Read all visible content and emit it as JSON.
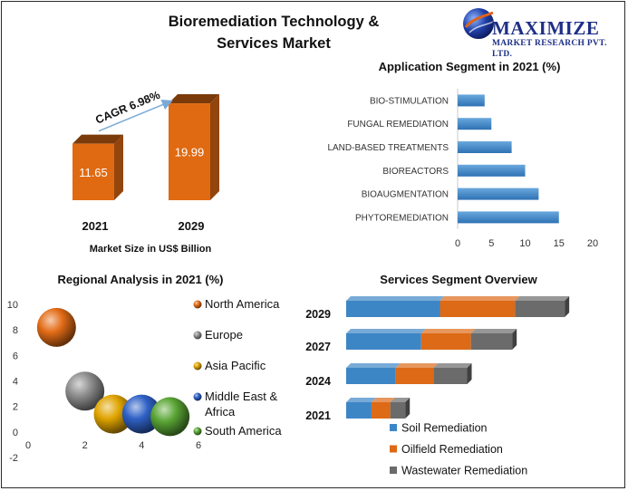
{
  "page": {
    "title_line1": "Bioremediation Technology &",
    "title_line2": "Services Market",
    "logo_name": "MAXIMIZE",
    "logo_sub": "MARKET RESEARCH PVT. LTD."
  },
  "chart_data": [
    {
      "id": "market-size",
      "type": "bar",
      "categories": [
        "2021",
        "2029"
      ],
      "values": [
        11.65,
        19.99
      ],
      "xlabel": "Market Size in US$ Billion",
      "annotation": "CAGR 6.98%",
      "color": "#e06a12"
    },
    {
      "id": "application",
      "type": "bar",
      "orientation": "horizontal",
      "title": "Application Segment in 2021 (%)",
      "categories": [
        "BIO-STIMULATION",
        "FUNGAL REMEDIATION",
        "LAND-BASED TREATMENTS",
        "BIOREACTORS",
        "BIOAUGMENTATION",
        "PHYTOREMEDIATION"
      ],
      "values": [
        4,
        5,
        8,
        10,
        12,
        15
      ],
      "xlim": [
        0,
        20
      ],
      "xticks": [
        0,
        5,
        10,
        15,
        20
      ],
      "color": "#4a8fcb"
    },
    {
      "id": "regional",
      "type": "scatter",
      "title": "Regional Analysis in 2021 (%)",
      "xlim": [
        0,
        6
      ],
      "ylim": [
        -2,
        10
      ],
      "xticks": [
        0,
        2,
        4,
        6
      ],
      "yticks": [
        -2,
        0,
        2,
        4,
        6,
        8,
        10
      ],
      "series": [
        {
          "name": "North America",
          "x": 1,
          "y": 8.2,
          "color": "#e36c17"
        },
        {
          "name": "Europe",
          "x": 2,
          "y": 3.2,
          "color": "#8e8e8e"
        },
        {
          "name": "Asia Pacific",
          "x": 3,
          "y": 1.4,
          "color": "#e0a400"
        },
        {
          "name": "Middle East & Africa",
          "x": 4,
          "y": 1.4,
          "color": "#2f61c6"
        },
        {
          "name": "South America",
          "x": 5,
          "y": 1.2,
          "color": "#5aa535"
        }
      ],
      "legend_position": "right"
    },
    {
      "id": "services",
      "type": "bar",
      "orientation": "horizontal",
      "stacked": true,
      "title": "Services Segment Overview",
      "categories": [
        "2029",
        "2027",
        "2024",
        "2021"
      ],
      "series": [
        {
          "name": "Soil Remediation",
          "values": [
            10,
            8,
            5.3,
            2.7
          ],
          "color": "#3d86c6"
        },
        {
          "name": "Oilfield Remediation",
          "values": [
            8,
            5.3,
            4,
            2
          ],
          "color": "#dd6a17"
        },
        {
          "name": "Wastewater Remediation",
          "values": [
            5.3,
            4.4,
            3.6,
            1.6
          ],
          "color": "#6b6b6b"
        }
      ],
      "legend_position": "bottom"
    }
  ]
}
